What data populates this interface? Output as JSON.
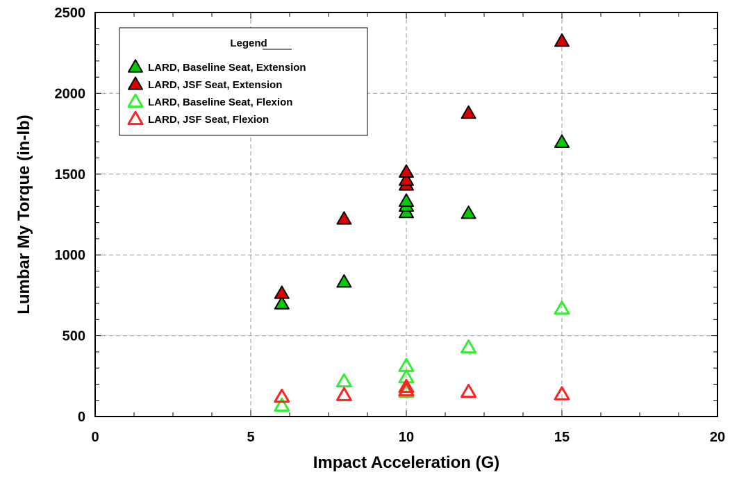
{
  "chart_data": {
    "type": "scatter",
    "xlabel": "Impact Acceleration (G)",
    "ylabel": "Lumbar My Torque  (in-lb)",
    "xlim": [
      0,
      20
    ],
    "ylim": [
      0,
      2500
    ],
    "x_ticks": [
      0,
      5,
      10,
      15,
      20
    ],
    "y_ticks": [
      0,
      500,
      1000,
      1500,
      2000,
      2500
    ],
    "x_minor_step": 1.25,
    "y_minor_step": 100,
    "grid": true,
    "legend_title": "Legend",
    "legend_placement": "top-left",
    "series": [
      {
        "name": "LARD, Baseline Seat,  Extension",
        "fill": "#00cc00",
        "stroke": "#000000",
        "filled": true,
        "points": [
          [
            6,
            695
          ],
          [
            8,
            830
          ],
          [
            10,
            1260
          ],
          [
            10,
            1300
          ],
          [
            10,
            1330
          ],
          [
            12,
            1255
          ],
          [
            15,
            1695
          ]
        ]
      },
      {
        "name": "LARD, JSF Seat, Extension",
        "fill": "#dd0000",
        "stroke": "#000000",
        "filled": true,
        "points": [
          [
            6,
            760
          ],
          [
            8,
            1220
          ],
          [
            10,
            1430
          ],
          [
            10,
            1460
          ],
          [
            10,
            1510
          ],
          [
            12,
            1875
          ],
          [
            15,
            2320
          ]
        ]
      },
      {
        "name": "LARD, Baseline Seat, Flexion",
        "fill": "none",
        "stroke": "#33ee33",
        "filled": false,
        "points": [
          [
            6,
            65
          ],
          [
            8,
            215
          ],
          [
            10,
            150
          ],
          [
            10,
            240
          ],
          [
            10,
            310
          ],
          [
            12,
            425
          ],
          [
            15,
            665
          ]
        ]
      },
      {
        "name": "LARD, JSF Seat, Flexion",
        "fill": "none",
        "stroke": "#ff2222",
        "filled": false,
        "points": [
          [
            6,
            120
          ],
          [
            8,
            130
          ],
          [
            10,
            160
          ],
          [
            10,
            180
          ],
          [
            12,
            150
          ],
          [
            15,
            135
          ]
        ]
      }
    ]
  }
}
